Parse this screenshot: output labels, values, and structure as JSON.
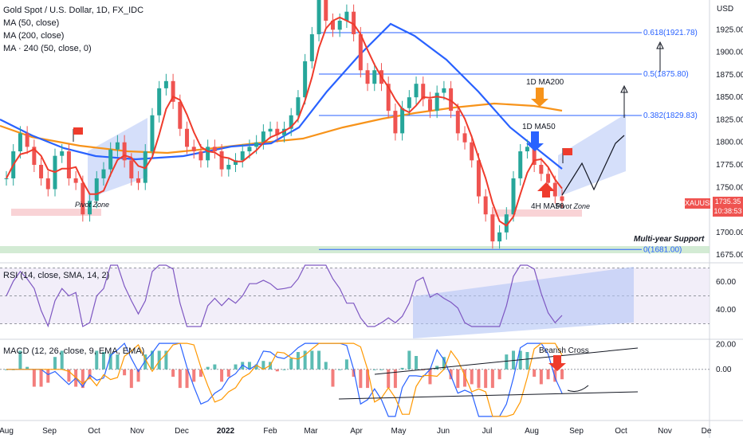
{
  "title": "Gold Spot / U.S. Dollar, 1D, FX_IDC",
  "legends": {
    "ma50": "MA (50, close)",
    "ma200": "MA (200, close)",
    "ma240": "MA · 240 (50, close, 0)",
    "rsi": "RSI (14, close, SMA, 14, 2)",
    "macd": "MACD (12, 26, close, 9, EMA, EMA)"
  },
  "currency": "USD",
  "ticker": {
    "symbol": "XAUUSD",
    "price": "1735.35",
    "countdown": "10:38:53"
  },
  "colors": {
    "price_up": "#26a69a",
    "price_down": "#ef5350",
    "ma50": "#ef3b2c",
    "ma200": "#f7931a",
    "ma240": "#2962ff",
    "rsi": "#7e57c2",
    "fib": "#2962ff",
    "zone_red": "#f8c8cc",
    "zone_green": "#c8e6c9",
    "channel": "#b3c4f5"
  },
  "chart_data": [
    {
      "type": "candlestick",
      "name": "price",
      "y_ticks": [
        "1925.00",
        "1900.00",
        "1875.00",
        "1850.00",
        "1825.00",
        "1800.00",
        "1775.00",
        "1750.00",
        "1725.00",
        "1700.00",
        "1675.00"
      ],
      "y_tick_values": [
        1925,
        1900,
        1875,
        1850,
        1825,
        1800,
        1775,
        1750,
        1725,
        1700,
        1675
      ],
      "ylim": [
        1668,
        1958
      ],
      "x_ticks": [
        "Aug",
        "Sep",
        "Oct",
        "Nov",
        "Dec",
        "2022",
        "Feb",
        "Mar",
        "Apr",
        "May",
        "Jun",
        "Jul",
        "Aug",
        "Sep",
        "Oct",
        "Nov",
        "De"
      ],
      "close_series": [
        1760,
        1790,
        1810,
        1795,
        1775,
        1760,
        1748,
        1785,
        1790,
        1760,
        1755,
        1720,
        1735,
        1760,
        1770,
        1792,
        1800,
        1780,
        1760,
        1755,
        1790,
        1830,
        1860,
        1868,
        1845,
        1815,
        1795,
        1790,
        1780,
        1795,
        1790,
        1770,
        1775,
        1780,
        1790,
        1795,
        1800,
        1812,
        1815,
        1808,
        1815,
        1830,
        1850,
        1890,
        1920,
        1960,
        1935,
        1925,
        1935,
        1945,
        1920,
        1880,
        1865,
        1880,
        1865,
        1835,
        1810,
        1838,
        1850,
        1865,
        1848,
        1835,
        1855,
        1860,
        1835,
        1810,
        1800,
        1780,
        1740,
        1720,
        1690,
        1700,
        1720,
        1760,
        1790,
        1795,
        1775,
        1765,
        1755,
        1740,
        1735
      ],
      "fib_levels": [
        {
          "label": "0.618(1921.78)",
          "value": 1921.78
        },
        {
          "label": "0.5(1875.80)",
          "value": 1875.8
        },
        {
          "label": "0.382(1829.83)",
          "value": 1829.83
        },
        {
          "label": "0(1681.00)",
          "value": 1681.0
        }
      ],
      "annotations": {
        "ma200_label": "1D MA200",
        "ma50_label": "1D MA50",
        "ma50_4h_label": "4H MA50",
        "pivot_1": "Pivot Zone",
        "pivot_2": "Pivot Zone",
        "support": "Multi-year Support"
      }
    },
    {
      "type": "line",
      "name": "RSI",
      "y_ticks": [
        "60.00",
        "40.00"
      ],
      "y_tick_values": [
        60,
        40
      ],
      "ylim": [
        20,
        72
      ]
    },
    {
      "type": "bar",
      "name": "MACD",
      "y_ticks": [
        "20.00",
        "0.00"
      ],
      "y_tick_values": [
        20,
        0
      ],
      "ylim": [
        -40,
        23
      ],
      "annotation": "Bearish Cross"
    }
  ]
}
